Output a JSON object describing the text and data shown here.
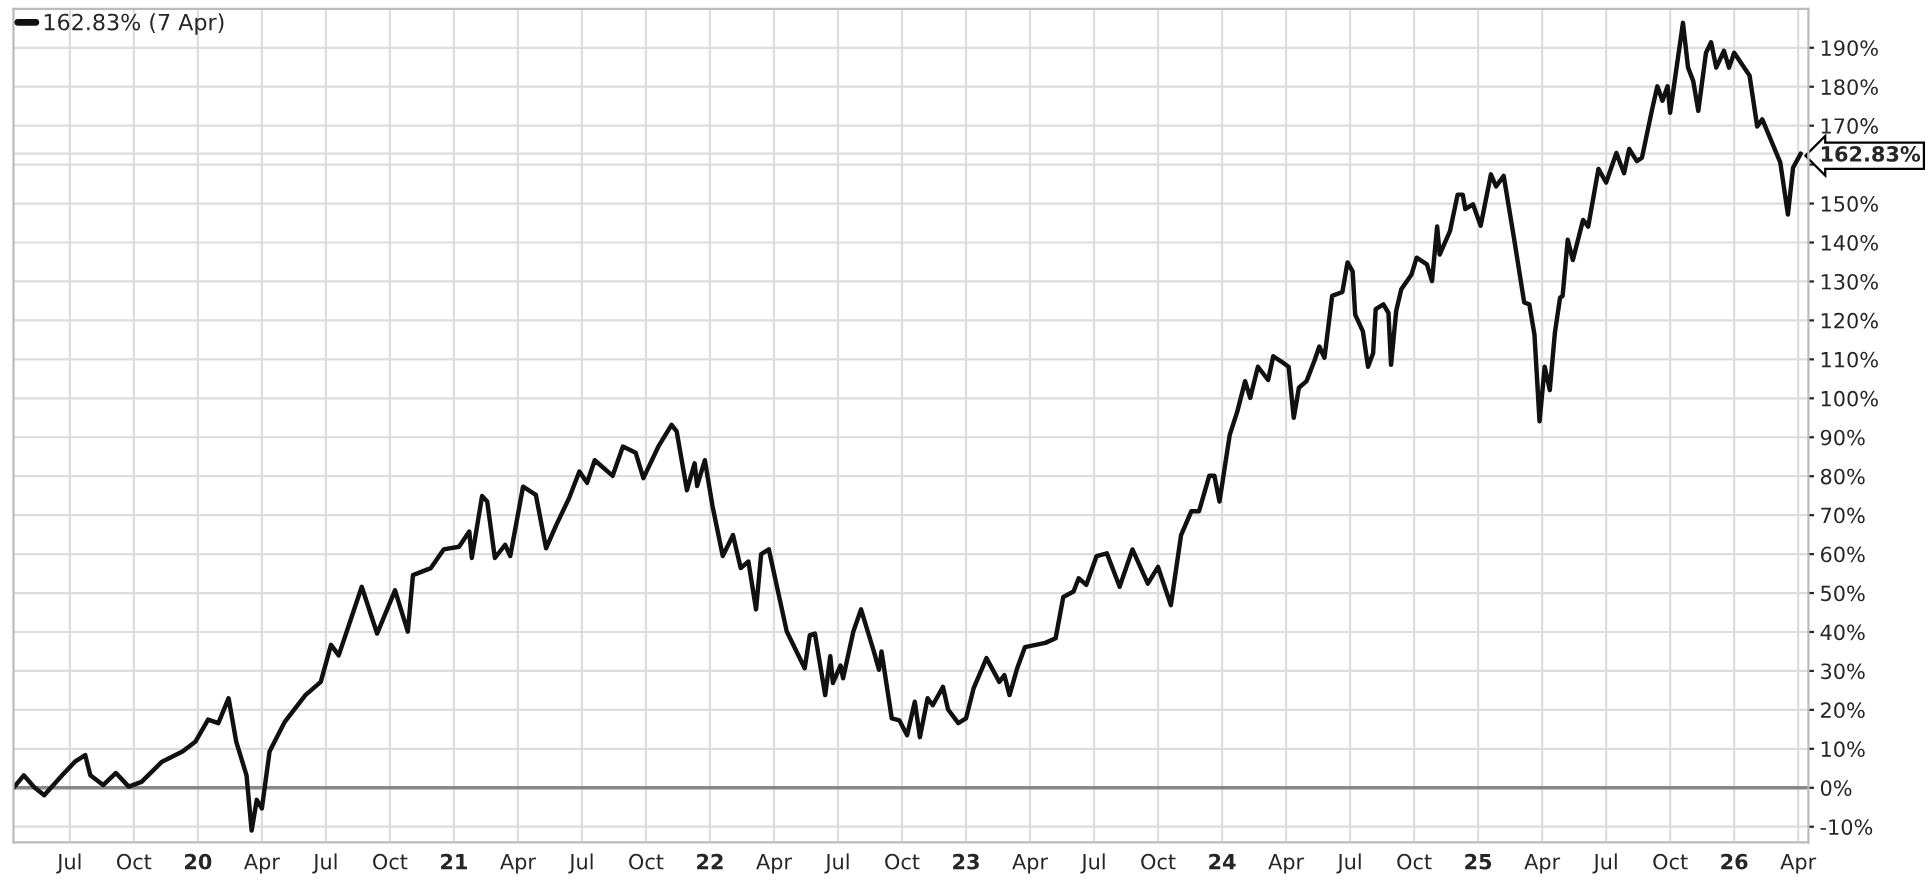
{
  "chart_data": {
    "type": "line",
    "legend": "top left",
    "grid": true,
    "line_style": "solid",
    "marker": "none",
    "series": [
      {
        "name": "162.83% (7 Apr)",
        "color": "#111111",
        "x": [
          2019.28,
          2019.32,
          2019.36,
          2019.4,
          2019.47,
          2019.52,
          2019.56,
          2019.58,
          2019.63,
          2019.68,
          2019.73,
          2019.78,
          2019.86,
          2019.94,
          2019.99,
          2020.04,
          2020.08,
          2020.12,
          2020.15,
          2020.19,
          2020.21,
          2020.23,
          2020.25,
          2020.28,
          2020.34,
          2020.42,
          2020.48,
          2020.52,
          2020.55,
          2020.59,
          2020.64,
          2020.7,
          2020.77,
          2020.82,
          2020.84,
          2020.91,
          2020.96,
          2021.02,
          2021.06,
          2021.07,
          2021.11,
          2021.13,
          2021.16,
          2021.2,
          2021.22,
          2021.27,
          2021.32,
          2021.36,
          2021.4,
          2021.45,
          2021.49,
          2021.52,
          2021.55,
          2021.62,
          2021.66,
          2021.71,
          2021.74,
          2021.8,
          2021.85,
          2021.87,
          2021.91,
          2021.94,
          2021.95,
          2021.98,
          2022.01,
          2022.05,
          2022.09,
          2022.12,
          2022.15,
          2022.18,
          2022.2,
          2022.23,
          2022.3,
          2022.37,
          2022.39,
          2022.41,
          2022.45,
          2022.47,
          2022.48,
          2022.51,
          2022.52,
          2022.56,
          2022.59,
          2022.64,
          2022.66,
          2022.67,
          2022.71,
          2022.74,
          2022.77,
          2022.8,
          2022.82,
          2022.85,
          2022.87,
          2022.91,
          2022.93,
          2022.97,
          2023.0,
          2023.03,
          2023.08,
          2023.13,
          2023.15,
          2023.17,
          2023.2,
          2023.23,
          2023.31,
          2023.35,
          2023.38,
          2023.42,
          2023.44,
          2023.47,
          2023.51,
          2023.55,
          2023.6,
          2023.65,
          2023.71,
          2023.75,
          2023.8,
          2023.84,
          2023.88,
          2023.91,
          2023.95,
          2023.97,
          2023.99,
          2024.03,
          2024.06,
          2024.09,
          2024.11,
          2024.14,
          2024.18,
          2024.2,
          2024.23,
          2024.26,
          2024.28,
          2024.3,
          2024.33,
          2024.36,
          2024.38,
          2024.4,
          2024.43,
          2024.47,
          2024.49,
          2024.51,
          2024.52,
          2024.55,
          2024.57,
          2024.59,
          2024.6,
          2024.63,
          2024.65,
          2024.66,
          2024.68,
          2024.7,
          2024.74,
          2024.76,
          2024.8,
          2024.82,
          2024.84,
          2024.85,
          2024.89,
          2024.92,
          2024.94,
          2024.95,
          2024.98,
          2025.01,
          2025.05,
          2025.07,
          2025.1,
          2025.14,
          2025.18,
          2025.2,
          2025.22,
          2025.24,
          2025.26,
          2025.28,
          2025.3,
          2025.32,
          2025.33,
          2025.35,
          2025.37,
          2025.41,
          2025.43,
          2025.47,
          2025.5,
          2025.54,
          2025.57,
          2025.59,
          2025.62,
          2025.64,
          2025.68,
          2025.7,
          2025.72,
          2025.74,
          2025.75,
          2025.8,
          2025.82,
          2025.84,
          2025.86,
          2025.89,
          2025.91,
          2025.93,
          2025.96,
          2025.98,
          2026.0,
          2026.06,
          2026.09,
          2026.11,
          2026.18,
          2026.21,
          2026.23,
          2026.26
        ],
        "values": [
          0,
          3.2,
          0.2,
          -1.9,
          3.2,
          6.7,
          8.4,
          3.2,
          0.7,
          3.8,
          0.3,
          1.5,
          6.7,
          9.3,
          11.8,
          17.5,
          16.6,
          23,
          11.8,
          3.2,
          -11,
          -3.1,
          -5.3,
          9.3,
          17,
          23.8,
          27.2,
          36.7,
          34,
          41.8,
          51.6,
          39.6,
          50.7,
          40.1,
          54.6,
          56.4,
          61.2,
          61.9,
          65.8,
          59,
          74.9,
          73.5,
          59,
          62.4,
          59.5,
          77.3,
          75.2,
          61.5,
          67.5,
          74.4,
          81.2,
          78.3,
          84.1,
          80.1,
          87.6,
          86,
          79.5,
          87.8,
          93.2,
          91.5,
          76.4,
          83.3,
          77.5,
          84.1,
          72.3,
          59.5,
          64.9,
          56.4,
          58.1,
          45.8,
          60,
          61.2,
          40.1,
          30.7,
          39.2,
          39.6,
          23.8,
          33.8,
          26.9,
          31.4,
          28.1,
          40.1,
          45.8,
          35,
          30.3,
          35,
          17.8,
          17.3,
          13.5,
          22.1,
          13,
          23,
          21.2,
          25.9,
          20.1,
          16.6,
          17.8,
          25.6,
          33.3,
          27.2,
          28.9,
          23.8,
          30.7,
          36.1,
          37.2,
          38.4,
          49,
          50.4,
          53.8,
          52.1,
          59.5,
          60.2,
          51.6,
          61.2,
          52.4,
          56.7,
          46.9,
          64.9,
          71,
          71,
          80.1,
          80.1,
          73.5,
          90.6,
          96.7,
          104.4,
          100.1,
          108.1,
          104.7,
          110.8,
          109.5,
          108.1,
          95,
          102.7,
          104.4,
          109.5,
          113.3,
          110.4,
          126.3,
          127.3,
          134.9,
          132.6,
          121.5,
          117.2,
          108.1,
          111.6,
          122.9,
          124.1,
          121.9,
          108.6,
          122.4,
          128,
          131.8,
          136.1,
          134.4,
          130.1,
          144.1,
          136.9,
          142.9,
          152.3,
          152.3,
          148.6,
          149.8,
          144.3,
          157.5,
          154.4,
          157.1,
          141.2,
          124.6,
          124.1,
          116.4,
          94.1,
          108.1,
          102.1,
          116.9,
          125.8,
          126.3,
          140.7,
          135.5,
          145.8,
          144.1,
          158.9,
          155.4,
          163,
          157.8,
          164,
          160.9,
          161.8,
          174.3,
          180.1,
          176.4,
          180.1,
          173.3,
          196.4,
          184.9,
          181.5,
          173.8,
          188.7,
          191.4,
          184.9,
          189.2,
          184.9,
          188.7,
          182.9,
          169.8,
          171.6,
          160.6,
          147.2,
          159.2,
          162.83
        ]
      }
    ],
    "xlim": [
      2019.28,
      2026.29
    ],
    "xticks": [
      {
        "value": 2019.5,
        "label": "Jul"
      },
      {
        "value": 2019.75,
        "label": "Oct"
      },
      {
        "value": 2020,
        "label": "20"
      },
      {
        "value": 2020.25,
        "label": "Apr"
      },
      {
        "value": 2020.5,
        "label": "Jul"
      },
      {
        "value": 2020.75,
        "label": "Oct"
      },
      {
        "value": 2021,
        "label": "21"
      },
      {
        "value": 2021.25,
        "label": "Apr"
      },
      {
        "value": 2021.5,
        "label": "Jul"
      },
      {
        "value": 2021.75,
        "label": "Oct"
      },
      {
        "value": 2022,
        "label": "22"
      },
      {
        "value": 2022.25,
        "label": "Apr"
      },
      {
        "value": 2022.5,
        "label": "Jul"
      },
      {
        "value": 2022.75,
        "label": "Oct"
      },
      {
        "value": 2023,
        "label": "23"
      },
      {
        "value": 2023.25,
        "label": "Apr"
      },
      {
        "value": 2023.5,
        "label": "Jul"
      },
      {
        "value": 2023.75,
        "label": "Oct"
      },
      {
        "value": 2024,
        "label": "24"
      },
      {
        "value": 2024.25,
        "label": "Apr"
      },
      {
        "value": 2024.5,
        "label": "Jul"
      },
      {
        "value": 2024.75,
        "label": "Oct"
      },
      {
        "value": 2025,
        "label": "25"
      },
      {
        "value": 2025.25,
        "label": "Apr"
      },
      {
        "value": 2025.5,
        "label": "Jul"
      },
      {
        "value": 2025.75,
        "label": "Oct"
      },
      {
        "value": 2026,
        "label": "26"
      },
      {
        "value": 2026.25,
        "label": "Apr"
      }
    ],
    "ylim": [
      -14,
      200
    ],
    "yticks": [
      {
        "value": -10,
        "label": "-10%"
      },
      {
        "value": 0,
        "label": "0%"
      },
      {
        "value": 10,
        "label": "10%"
      },
      {
        "value": 20,
        "label": "20%"
      },
      {
        "value": 30,
        "label": "30%"
      },
      {
        "value": 40,
        "label": "40%"
      },
      {
        "value": 50,
        "label": "50%"
      },
      {
        "value": 60,
        "label": "60%"
      },
      {
        "value": 70,
        "label": "70%"
      },
      {
        "value": 80,
        "label": "80%"
      },
      {
        "value": 90,
        "label": "90%"
      },
      {
        "value": 100,
        "label": "100%"
      },
      {
        "value": 110,
        "label": "110%"
      },
      {
        "value": 120,
        "label": "120%"
      },
      {
        "value": 130,
        "label": "130%"
      },
      {
        "value": 140,
        "label": "140%"
      },
      {
        "value": 150,
        "label": "150%"
      },
      {
        "value": 160,
        "label": null
      },
      {
        "value": 162.83,
        "label": "162.83%"
      },
      {
        "value": 170,
        "label": "170%"
      },
      {
        "value": 180,
        "label": "180%"
      },
      {
        "value": 190,
        "label": "190%"
      }
    ],
    "ref_lines": [
      {
        "axis": "y",
        "value": 0,
        "color": "#888888"
      }
    ]
  }
}
